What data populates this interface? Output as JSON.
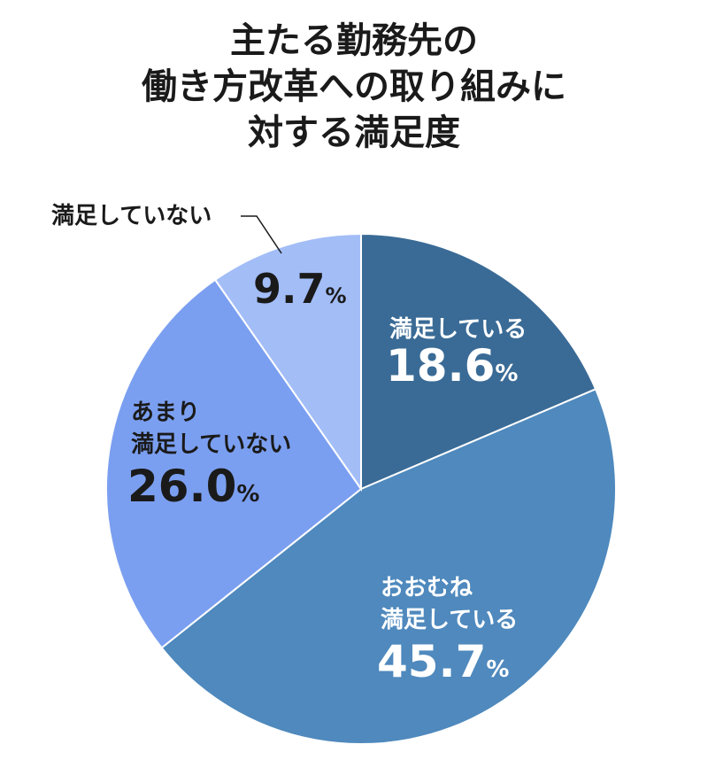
{
  "title_lines": [
    "主たる勤務先の",
    "働き方改革への取り組みに",
    "対する満足度"
  ],
  "chart_data": {
    "type": "pie",
    "title": "主たる勤務先の働き方改革への取り組みに対する満足度",
    "slices": [
      {
        "label_lines": [
          "満足している"
        ],
        "value": 18.6,
        "value_text": "18.6",
        "unit": "%",
        "color": "#3a6b96",
        "text_color": "#ffffff"
      },
      {
        "label_lines": [
          "おおむね",
          "満足している"
        ],
        "value": 45.7,
        "value_text": "45.7",
        "unit": "%",
        "color": "#4f89bd",
        "text_color": "#ffffff"
      },
      {
        "label_lines": [
          "あまり",
          "満足していない"
        ],
        "value": 26.0,
        "value_text": "26.0",
        "unit": "%",
        "color": "#7b9ff0",
        "text_color": "#1a1a1a"
      },
      {
        "label_lines": [
          "満足していない"
        ],
        "value": 9.7,
        "value_text": "9.7",
        "unit": "%",
        "color": "#a3bdf7",
        "text_color": "#1a1a1a"
      }
    ],
    "start_angle_deg": 0,
    "direction": "clockwise",
    "slice_border_color": "#ffffff"
  }
}
